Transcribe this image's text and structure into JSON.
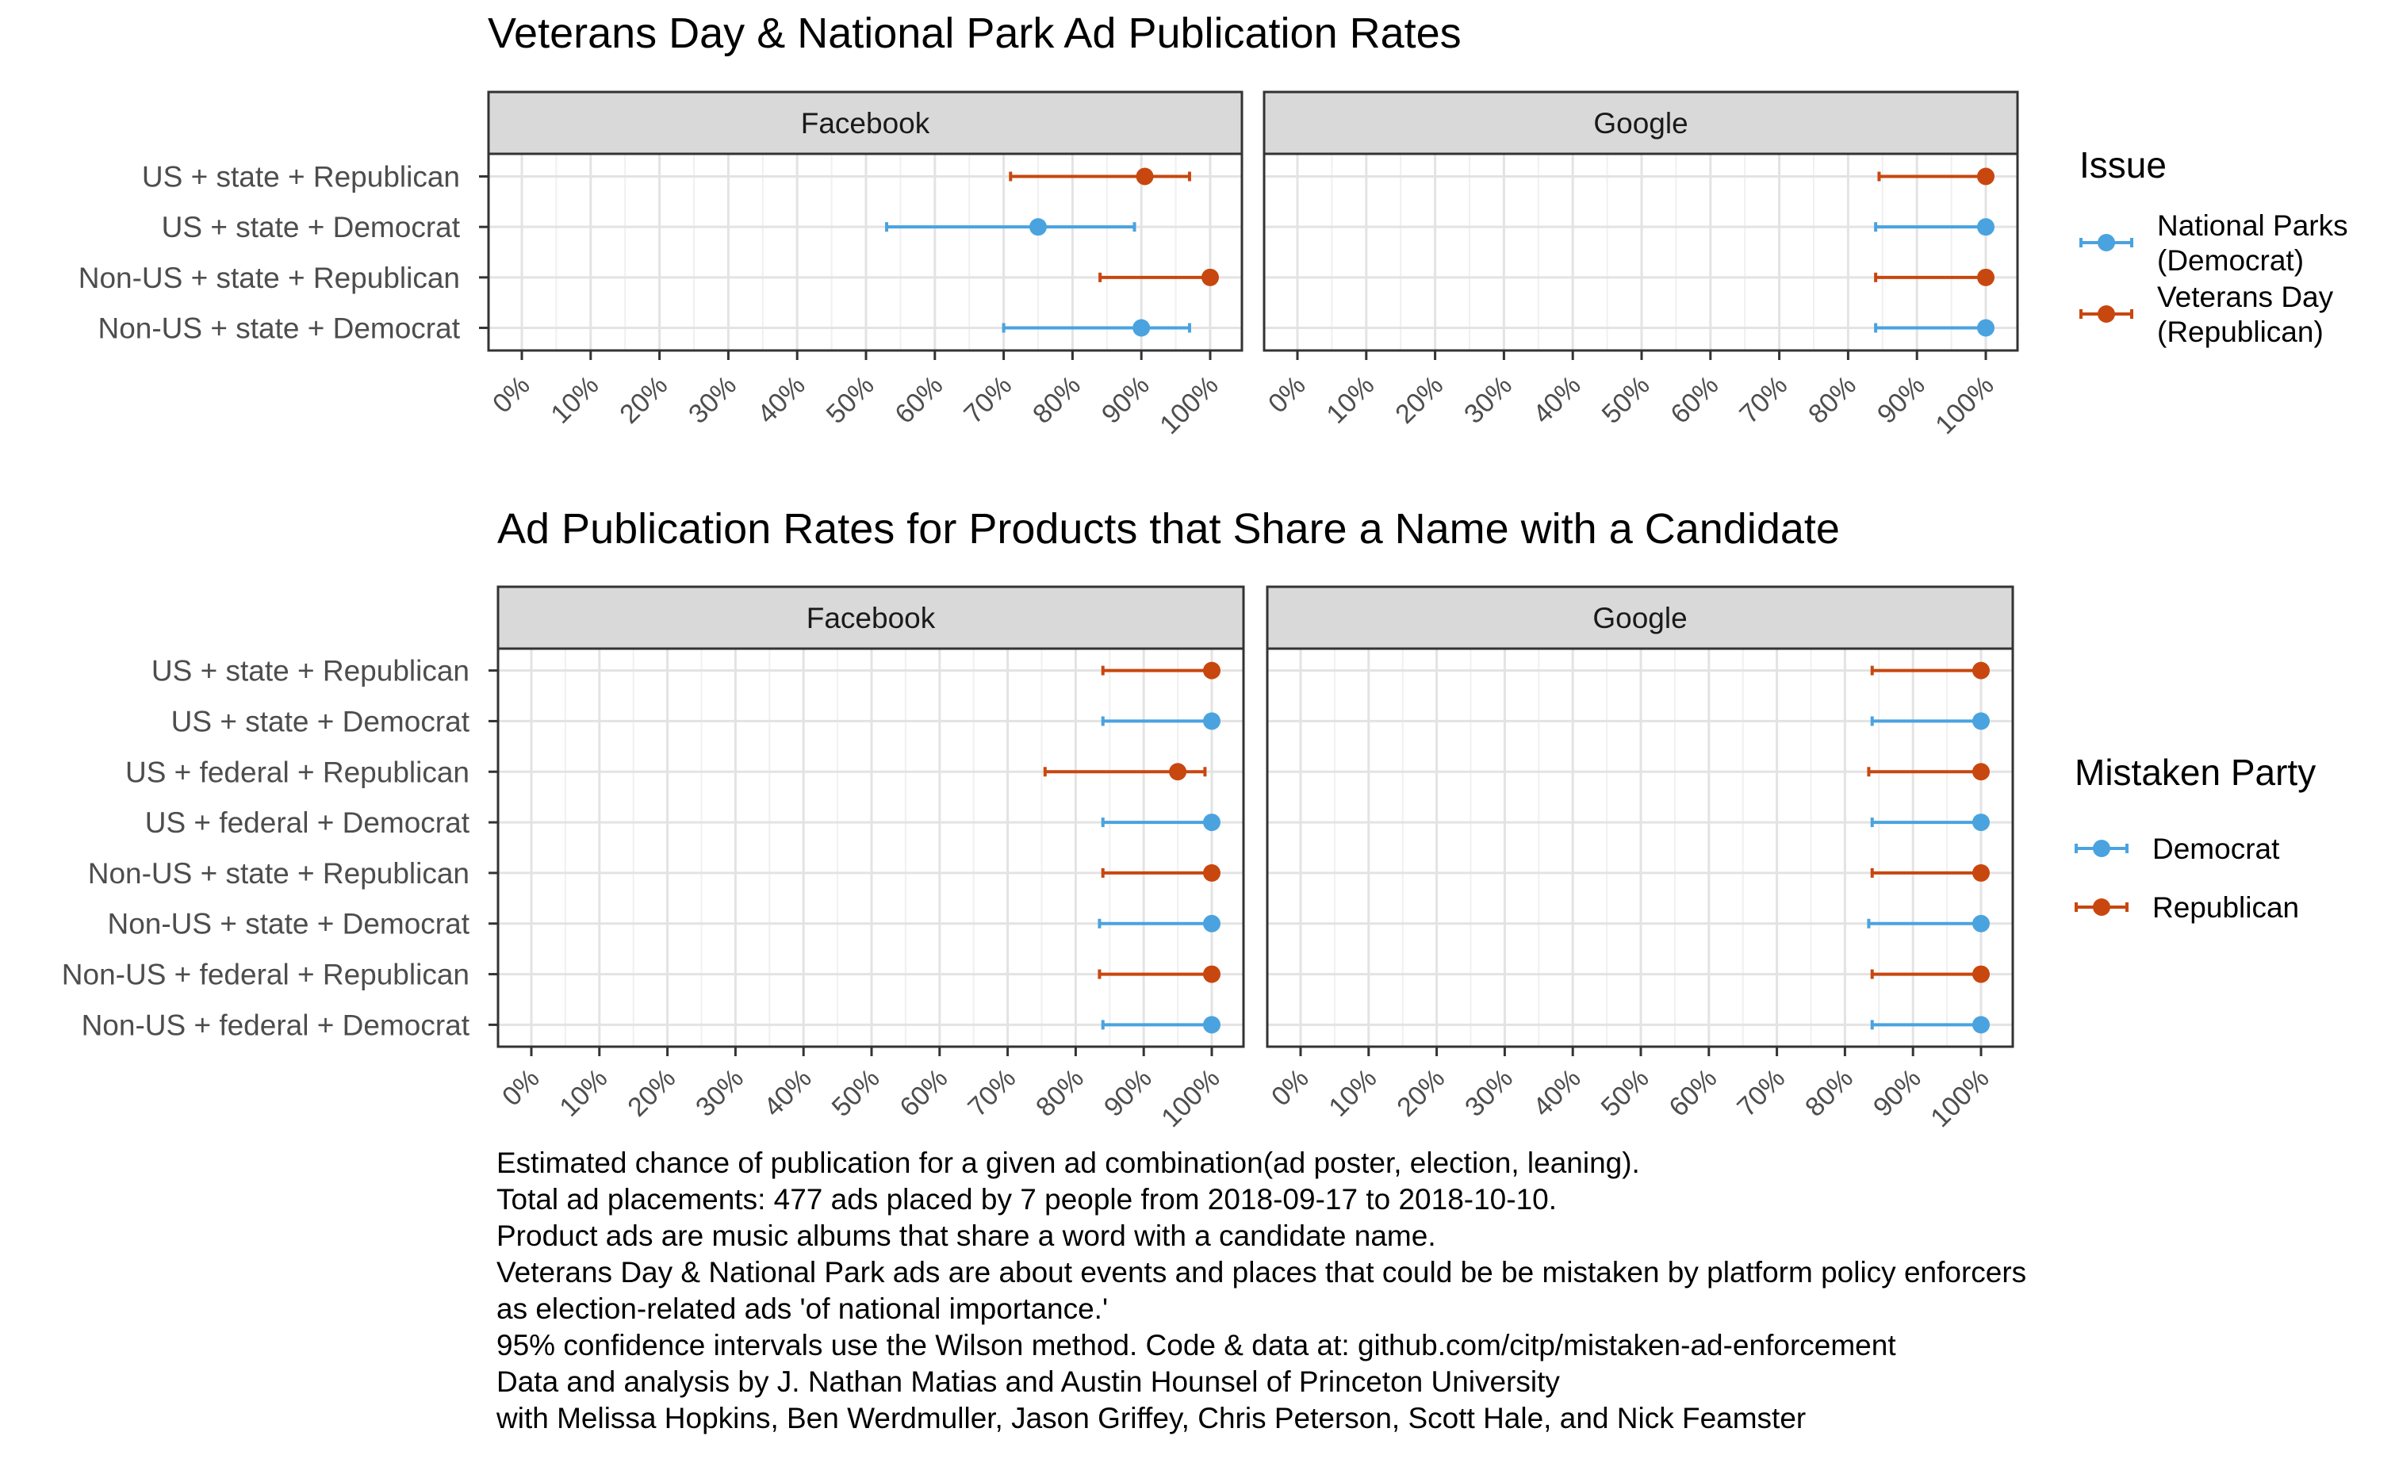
{
  "chart_data": [
    {
      "type": "dot-interval",
      "title": "Veterans Day & National Park Ad Publication Rates",
      "xlabel": "",
      "ylabel": "",
      "xlim": [
        0,
        1
      ],
      "x_ticks": [
        "0%",
        "10%",
        "20%",
        "30%",
        "40%",
        "50%",
        "60%",
        "70%",
        "80%",
        "90%",
        "100%"
      ],
      "grid": true,
      "legend_position": "right",
      "legend_title": "Issue",
      "legend": [
        {
          "key": "dem",
          "label_lines": [
            "National Parks",
            "(Democrat)"
          ],
          "color": "#4aa3df"
        },
        {
          "key": "rep",
          "label_lines": [
            "Veterans Day",
            "(Republican)"
          ],
          "color": "#c8470f"
        }
      ],
      "categories": [
        "US + state + Republican",
        "US + state + Democrat",
        "Non-US + state + Republican",
        "Non-US + state + Democrat"
      ],
      "panels": [
        {
          "name": "Facebook",
          "points": [
            {
              "category": "US + state + Republican",
              "party": "rep",
              "estimate": 0.905,
              "lower": 0.71,
              "upper": 0.97
            },
            {
              "category": "US + state + Democrat",
              "party": "dem",
              "estimate": 0.75,
              "lower": 0.53,
              "upper": 0.89
            },
            {
              "category": "Non-US + state + Republican",
              "party": "rep",
              "estimate": 1.0,
              "lower": 0.84,
              "upper": 1.0
            },
            {
              "category": "Non-US + state + Democrat",
              "party": "dem",
              "estimate": 0.9,
              "lower": 0.7,
              "upper": 0.97
            }
          ]
        },
        {
          "name": "Google",
          "points": [
            {
              "category": "US + state + Republican",
              "party": "rep",
              "estimate": 1.0,
              "lower": 0.845,
              "upper": 1.0
            },
            {
              "category": "US + state + Democrat",
              "party": "dem",
              "estimate": 1.0,
              "lower": 0.84,
              "upper": 1.0
            },
            {
              "category": "Non-US + state + Republican",
              "party": "rep",
              "estimate": 1.0,
              "lower": 0.84,
              "upper": 1.0
            },
            {
              "category": "Non-US + state + Democrat",
              "party": "dem",
              "estimate": 1.0,
              "lower": 0.84,
              "upper": 1.0
            }
          ]
        }
      ]
    },
    {
      "type": "dot-interval",
      "title": "Ad Publication Rates for Products that Share a Name with a Candidate",
      "xlabel": "",
      "ylabel": "",
      "xlim": [
        0,
        1
      ],
      "x_ticks": [
        "0%",
        "10%",
        "20%",
        "30%",
        "40%",
        "50%",
        "60%",
        "70%",
        "80%",
        "90%",
        "100%"
      ],
      "grid": true,
      "legend_position": "right",
      "legend_title": "Mistaken Party",
      "legend": [
        {
          "key": "dem",
          "label_lines": [
            "Democrat"
          ],
          "color": "#4aa3df"
        },
        {
          "key": "rep",
          "label_lines": [
            "Republican"
          ],
          "color": "#c8470f"
        }
      ],
      "categories": [
        "US + state + Republican",
        "US + state + Democrat",
        "US + federal + Republican",
        "US + federal + Democrat",
        "Non-US + state + Republican",
        "Non-US + state + Democrat",
        "Non-US + federal + Republican",
        "Non-US + federal + Democrat"
      ],
      "panels": [
        {
          "name": "Facebook",
          "points": [
            {
              "category": "US + state + Republican",
              "party": "rep",
              "estimate": 1.0,
              "lower": 0.84,
              "upper": 1.0
            },
            {
              "category": "US + state + Democrat",
              "party": "dem",
              "estimate": 1.0,
              "lower": 0.84,
              "upper": 1.0
            },
            {
              "category": "US + federal + Republican",
              "party": "rep",
              "estimate": 0.95,
              "lower": 0.755,
              "upper": 0.99
            },
            {
              "category": "US + federal + Democrat",
              "party": "dem",
              "estimate": 1.0,
              "lower": 0.84,
              "upper": 1.0
            },
            {
              "category": "Non-US + state + Republican",
              "party": "rep",
              "estimate": 1.0,
              "lower": 0.84,
              "upper": 1.0
            },
            {
              "category": "Non-US + state + Democrat",
              "party": "dem",
              "estimate": 1.0,
              "lower": 0.835,
              "upper": 1.0
            },
            {
              "category": "Non-US + federal + Republican",
              "party": "rep",
              "estimate": 1.0,
              "lower": 0.835,
              "upper": 1.0
            },
            {
              "category": "Non-US + federal + Democrat",
              "party": "dem",
              "estimate": 1.0,
              "lower": 0.84,
              "upper": 1.0
            }
          ]
        },
        {
          "name": "Google",
          "points": [
            {
              "category": "US + state + Republican",
              "party": "rep",
              "estimate": 1.0,
              "lower": 0.84,
              "upper": 1.0
            },
            {
              "category": "US + state + Democrat",
              "party": "dem",
              "estimate": 1.0,
              "lower": 0.84,
              "upper": 1.0
            },
            {
              "category": "US + federal + Republican",
              "party": "rep",
              "estimate": 1.0,
              "lower": 0.835,
              "upper": 1.0
            },
            {
              "category": "US + federal + Democrat",
              "party": "dem",
              "estimate": 1.0,
              "lower": 0.84,
              "upper": 1.0
            },
            {
              "category": "Non-US + state + Republican",
              "party": "rep",
              "estimate": 1.0,
              "lower": 0.84,
              "upper": 1.0
            },
            {
              "category": "Non-US + state + Democrat",
              "party": "dem",
              "estimate": 1.0,
              "lower": 0.835,
              "upper": 1.0
            },
            {
              "category": "Non-US + federal + Republican",
              "party": "rep",
              "estimate": 1.0,
              "lower": 0.84,
              "upper": 1.0
            },
            {
              "category": "Non-US + federal + Democrat",
              "party": "dem",
              "estimate": 1.0,
              "lower": 0.84,
              "upper": 1.0
            }
          ]
        }
      ]
    }
  ],
  "caption": {
    "lines": [
      "Estimated chance of publication for a given ad combination(ad poster, election, leaning).",
      "Total ad placements: 477 ads placed by 7 people from 2018-09-17 to 2018-10-10.",
      "Product ads are music albums that share a word with a candidate name.",
      "Veterans Day & National Park ads are about events and places that could be be mistaken by platform policy enforcers",
      "as election-related ads 'of national importance.'",
      "95% confidence intervals use the Wilson method. Code & data at: github.com/citp/mistaken-ad-enforcement",
      "Data and analysis by J. Nathan Matias and Austin Hounsel of Princeton University",
      "with Melissa Hopkins, Ben Werdmuller, Jason Griffey, Chris Peterson, Scott Hale, and Nick Feamster"
    ]
  }
}
